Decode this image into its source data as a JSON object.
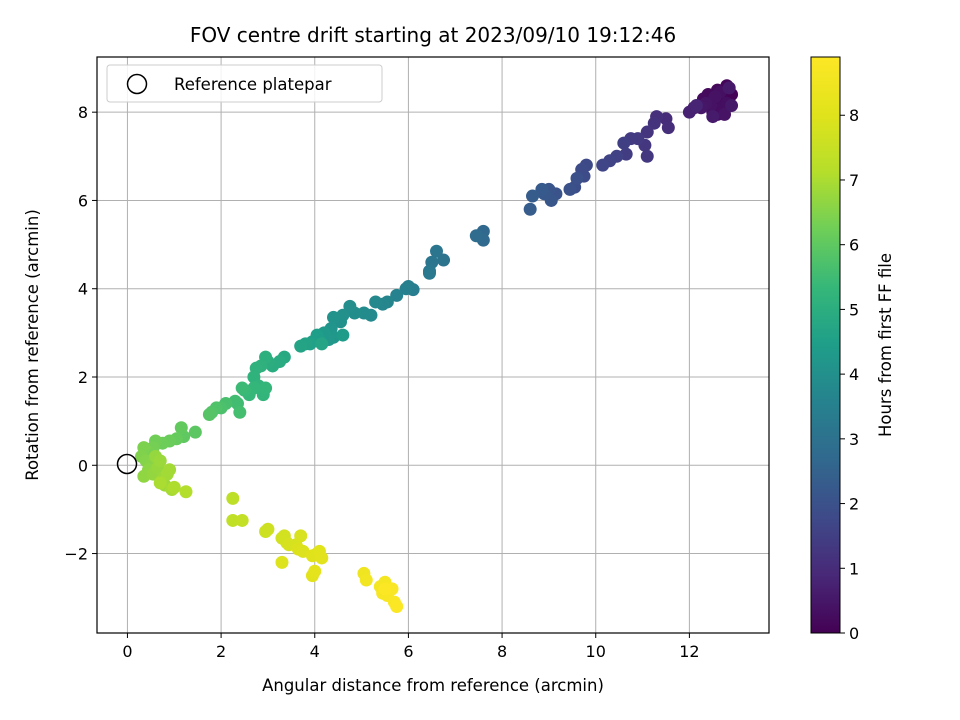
{
  "chart_data": {
    "type": "scatter",
    "title": "FOV centre drift starting at 2023/09/10 19:12:46",
    "xlabel": "Angular distance from reference (arcmin)",
    "ylabel": "Rotation from reference (arcmin)",
    "xlim": [
      -0.65,
      13.7
    ],
    "ylim": [
      -3.8,
      9.25
    ],
    "xticks": [
      0,
      2,
      4,
      6,
      8,
      10,
      12
    ],
    "yticks": [
      -2,
      0,
      2,
      4,
      6,
      8
    ],
    "xtick_labels": [
      "0",
      "2",
      "4",
      "6",
      "8",
      "10",
      "12"
    ],
    "ytick_labels": [
      "−2",
      "0",
      "2",
      "4",
      "6",
      "8"
    ],
    "grid": true,
    "legend": {
      "placement": "top-left",
      "entries": [
        "Reference platepar"
      ]
    },
    "reference_point": {
      "x": 0,
      "y": 0
    },
    "colorbar": {
      "label": "Hours from first FF file",
      "colormap": "viridis",
      "range": [
        0,
        8.9
      ],
      "ticks": [
        0,
        1,
        2,
        3,
        4,
        5,
        6,
        7,
        8
      ],
      "tick_labels": [
        "0",
        "1",
        "2",
        "3",
        "4",
        "5",
        "6",
        "7",
        "8"
      ]
    },
    "points": [
      [
        12.9,
        8.4,
        0.05
      ],
      [
        12.8,
        8.6,
        0.1
      ],
      [
        12.7,
        8.3,
        0.12
      ],
      [
        12.6,
        8.5,
        0.15
      ],
      [
        12.5,
        8.2,
        0.18
      ],
      [
        12.4,
        8.4,
        0.2
      ],
      [
        12.3,
        8.3,
        0.22
      ],
      [
        12.5,
        8.0,
        0.25
      ],
      [
        12.6,
        7.95,
        0.28
      ],
      [
        12.7,
        8.1,
        0.3
      ],
      [
        12.8,
        8.2,
        0.32
      ],
      [
        12.65,
        8.45,
        0.35
      ],
      [
        12.55,
        8.35,
        0.38
      ],
      [
        12.45,
        8.15,
        0.4
      ],
      [
        12.75,
        7.95,
        0.42
      ],
      [
        12.35,
        8.2,
        0.45
      ],
      [
        12.25,
        8.1,
        0.5
      ],
      [
        12.9,
        8.15,
        0.52
      ],
      [
        12.85,
        8.55,
        0.55
      ],
      [
        12.5,
        7.9,
        0.6
      ],
      [
        12.1,
        8.1,
        0.7
      ],
      [
        12.0,
        8.0,
        0.75
      ],
      [
        12.15,
        8.15,
        0.8
      ],
      [
        11.5,
        7.85,
        1.0
      ],
      [
        11.55,
        7.65,
        1.05
      ],
      [
        11.3,
        7.9,
        1.1
      ],
      [
        11.25,
        7.75,
        1.15
      ],
      [
        11.1,
        7.55,
        1.2
      ],
      [
        11.05,
        7.25,
        1.25
      ],
      [
        11.1,
        7.0,
        1.3
      ],
      [
        10.9,
        7.4,
        1.35
      ],
      [
        10.75,
        7.4,
        1.4
      ],
      [
        10.65,
        7.05,
        1.45
      ],
      [
        10.6,
        7.3,
        1.5
      ],
      [
        10.45,
        7.0,
        1.55
      ],
      [
        10.3,
        6.9,
        1.6
      ],
      [
        10.15,
        6.8,
        1.65
      ],
      [
        9.8,
        6.8,
        1.75
      ],
      [
        9.75,
        6.55,
        1.8
      ],
      [
        9.7,
        6.7,
        1.85
      ],
      [
        9.55,
        6.3,
        1.9
      ],
      [
        9.6,
        6.5,
        1.95
      ],
      [
        9.45,
        6.25,
        2.0
      ],
      [
        9.15,
        6.15,
        2.05
      ],
      [
        9.0,
        6.25,
        2.1
      ],
      [
        9.05,
        6.0,
        2.15
      ],
      [
        8.9,
        6.15,
        2.2
      ],
      [
        8.85,
        6.25,
        2.25
      ],
      [
        8.65,
        6.1,
        2.3
      ],
      [
        8.6,
        5.8,
        2.35
      ],
      [
        7.6,
        5.3,
        2.7
      ],
      [
        7.6,
        5.1,
        2.75
      ],
      [
        7.45,
        5.2,
        2.8
      ],
      [
        6.75,
        4.65,
        3.05
      ],
      [
        6.6,
        4.85,
        3.1
      ],
      [
        6.5,
        4.6,
        3.15
      ],
      [
        6.45,
        4.4,
        3.2
      ],
      [
        6.45,
        4.35,
        3.25
      ],
      [
        6.1,
        3.98,
        3.4
      ],
      [
        6.0,
        4.05,
        3.45
      ],
      [
        5.95,
        4.0,
        3.5
      ],
      [
        5.75,
        3.85,
        3.55
      ],
      [
        5.55,
        3.7,
        3.65
      ],
      [
        5.45,
        3.65,
        3.7
      ],
      [
        5.3,
        3.7,
        3.75
      ],
      [
        5.2,
        3.4,
        3.8
      ],
      [
        5.05,
        3.45,
        3.85
      ],
      [
        4.85,
        3.45,
        3.9
      ],
      [
        4.75,
        3.6,
        3.95
      ],
      [
        4.6,
        3.4,
        4.0
      ],
      [
        4.55,
        3.25,
        4.05
      ],
      [
        4.4,
        3.35,
        4.1
      ],
      [
        4.35,
        3.1,
        4.15
      ],
      [
        4.4,
        2.9,
        4.2
      ],
      [
        4.3,
        2.85,
        4.25
      ],
      [
        4.2,
        3.0,
        4.3
      ],
      [
        4.1,
        2.85,
        4.35
      ],
      [
        4.6,
        2.95,
        4.4
      ],
      [
        4.05,
        2.95,
        4.45
      ],
      [
        3.95,
        2.8,
        4.5
      ],
      [
        3.9,
        2.75,
        4.55
      ],
      [
        3.8,
        2.75,
        4.6
      ],
      [
        3.7,
        2.7,
        4.65
      ],
      [
        4.15,
        2.75,
        4.7
      ],
      [
        3.35,
        2.45,
        4.85
      ],
      [
        3.25,
        2.35,
        4.9
      ],
      [
        3.1,
        2.25,
        4.95
      ],
      [
        3.0,
        2.35,
        5.0
      ],
      [
        2.95,
        2.45,
        5.05
      ],
      [
        2.85,
        2.25,
        5.1
      ],
      [
        2.75,
        2.2,
        5.12
      ],
      [
        2.7,
        2.0,
        5.15
      ],
      [
        2.8,
        1.8,
        5.2
      ],
      [
        2.9,
        1.6,
        5.25
      ],
      [
        2.95,
        1.75,
        5.28
      ],
      [
        2.7,
        1.75,
        5.3
      ],
      [
        2.6,
        1.6,
        5.35
      ],
      [
        2.5,
        1.7,
        5.4
      ],
      [
        2.45,
        1.75,
        5.45
      ],
      [
        2.35,
        1.4,
        5.5
      ],
      [
        2.3,
        1.45,
        5.55
      ],
      [
        2.4,
        1.2,
        5.6
      ],
      [
        2.1,
        1.4,
        5.65
      ],
      [
        2.0,
        1.3,
        5.7
      ],
      [
        1.9,
        1.3,
        5.75
      ],
      [
        1.8,
        1.2,
        5.8
      ],
      [
        1.75,
        1.15,
        5.85
      ],
      [
        1.45,
        0.75,
        5.95
      ],
      [
        1.2,
        0.65,
        6.0
      ],
      [
        1.15,
        0.85,
        6.05
      ],
      [
        1.05,
        0.6,
        6.1
      ],
      [
        0.9,
        0.55,
        6.15
      ],
      [
        0.75,
        0.5,
        6.2
      ],
      [
        0.6,
        0.55,
        6.25
      ],
      [
        0.55,
        0.4,
        6.3
      ],
      [
        0.45,
        0.3,
        6.35
      ],
      [
        0.35,
        0.4,
        6.4
      ],
      [
        0.3,
        0.2,
        6.45
      ],
      [
        0.4,
        0.1,
        6.5
      ],
      [
        0.5,
        0.0,
        6.55
      ],
      [
        0.45,
        -0.1,
        6.6
      ],
      [
        0.35,
        -0.25,
        6.65
      ],
      [
        0.55,
        -0.2,
        6.7
      ],
      [
        0.6,
        0.2,
        6.72
      ],
      [
        0.65,
        -0.05,
        6.75
      ],
      [
        0.7,
        0.1,
        6.78
      ],
      [
        0.75,
        -0.3,
        6.8
      ],
      [
        0.8,
        -0.45,
        6.85
      ],
      [
        0.85,
        -0.2,
        6.88
      ],
      [
        0.9,
        -0.1,
        6.9
      ],
      [
        0.95,
        -0.55,
        6.95
      ],
      [
        0.7,
        -0.4,
        7.0
      ],
      [
        1.0,
        -0.5,
        7.05
      ],
      [
        1.25,
        -0.6,
        7.1
      ],
      [
        2.25,
        -0.75,
        7.3
      ],
      [
        2.25,
        -1.25,
        7.35
      ],
      [
        2.45,
        -1.25,
        7.4
      ],
      [
        2.95,
        -1.5,
        7.6
      ],
      [
        3.0,
        -1.45,
        7.62
      ],
      [
        3.3,
        -1.65,
        7.7
      ],
      [
        3.35,
        -1.6,
        7.72
      ],
      [
        3.4,
        -1.75,
        7.75
      ],
      [
        3.45,
        -1.8,
        7.8
      ],
      [
        3.6,
        -1.8,
        7.82
      ],
      [
        3.7,
        -1.6,
        7.85
      ],
      [
        3.65,
        -1.9,
        7.9
      ],
      [
        3.75,
        -1.95,
        7.92
      ],
      [
        3.3,
        -2.2,
        7.95
      ],
      [
        3.95,
        -2.05,
        8.0
      ],
      [
        4.05,
        -2.0,
        8.02
      ],
      [
        4.1,
        -1.95,
        8.05
      ],
      [
        4.15,
        -2.1,
        8.08
      ],
      [
        3.95,
        -2.5,
        8.1
      ],
      [
        4.0,
        -2.4,
        8.12
      ],
      [
        5.05,
        -2.45,
        8.5
      ],
      [
        5.1,
        -2.6,
        8.55
      ],
      [
        5.4,
        -2.75,
        8.6
      ],
      [
        5.5,
        -2.65,
        8.65
      ],
      [
        5.45,
        -2.9,
        8.7
      ],
      [
        5.55,
        -2.95,
        8.75
      ],
      [
        5.65,
        -2.8,
        8.78
      ],
      [
        5.7,
        -3.1,
        8.82
      ],
      [
        5.75,
        -3.2,
        8.86
      ],
      [
        5.5,
        -2.8,
        8.88
      ]
    ]
  }
}
